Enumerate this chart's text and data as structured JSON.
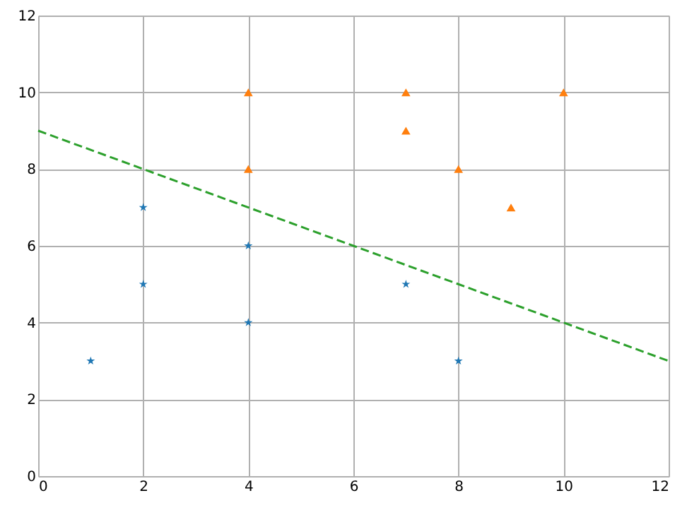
{
  "chart_data": {
    "type": "scatter",
    "xlim": [
      0,
      12
    ],
    "ylim": [
      0,
      12
    ],
    "xticks": [
      0,
      2,
      4,
      6,
      8,
      10,
      12
    ],
    "yticks": [
      0,
      2,
      4,
      6,
      8,
      10,
      12
    ],
    "grid": true,
    "series": [
      {
        "marker": "star",
        "color": "#1f77b4",
        "x": [
          1,
          2,
          2,
          4,
          4,
          7,
          8
        ],
        "values": [
          3,
          7,
          5,
          6,
          4,
          5,
          3
        ]
      },
      {
        "marker": "triangle",
        "color": "#ff7f0e",
        "x": [
          4,
          4,
          7,
          7,
          8,
          9,
          10
        ],
        "values": [
          10,
          8,
          10,
          9,
          8,
          7,
          10
        ]
      },
      {
        "type": "line",
        "marker": "none",
        "line_style": "dashed",
        "color": "#2ca02c",
        "x": [
          0,
          12
        ],
        "values": [
          9,
          3
        ]
      }
    ]
  }
}
